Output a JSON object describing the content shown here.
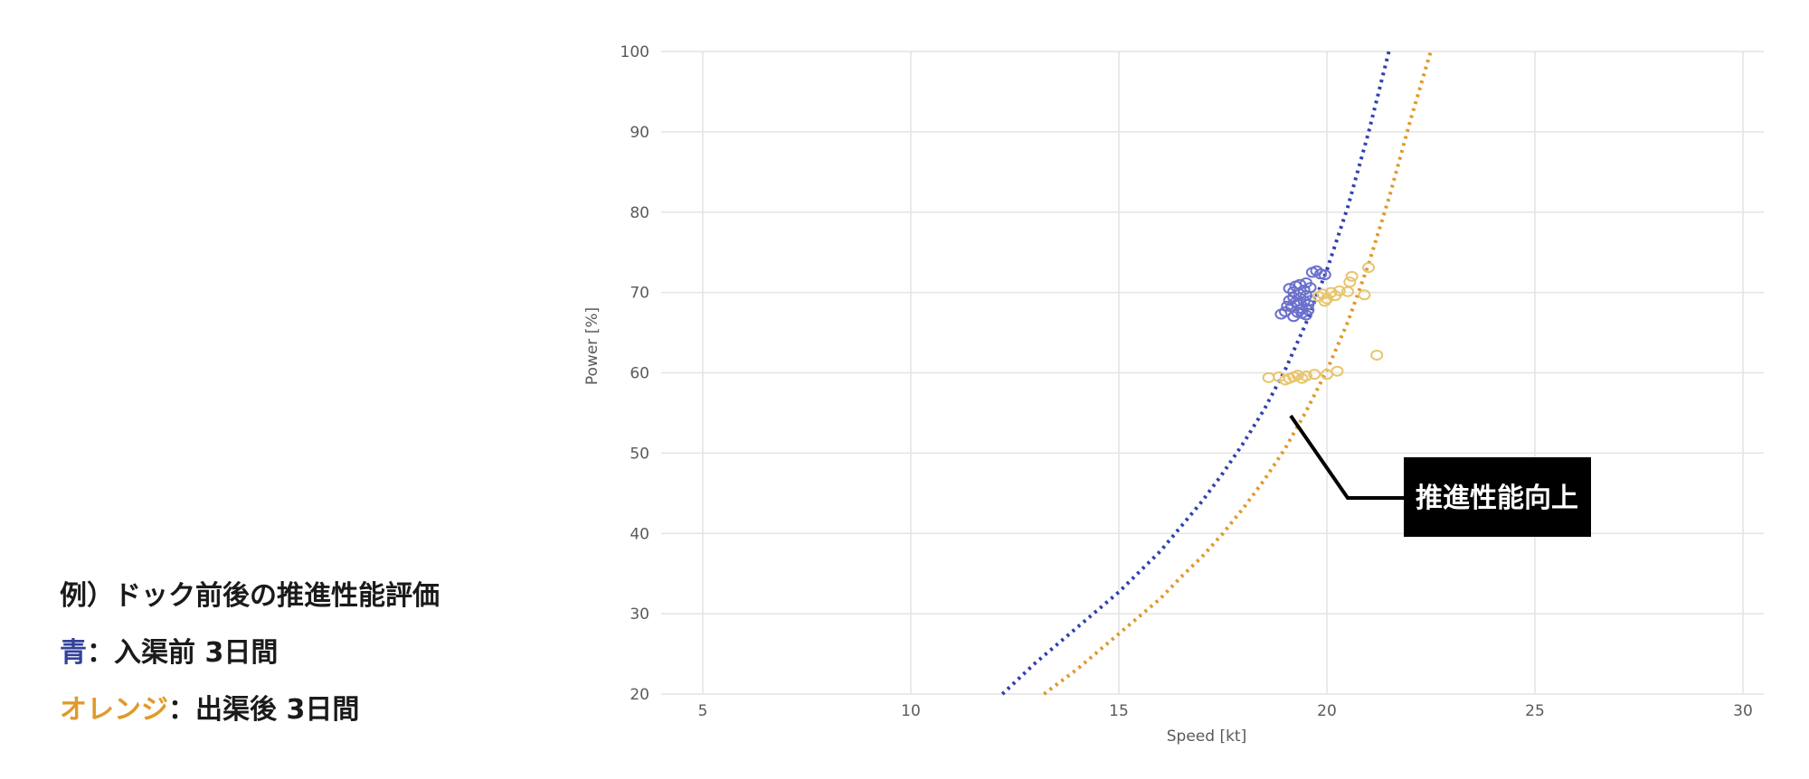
{
  "caption": {
    "line1": "例）ドック前後の推進性能評価",
    "line2_color_word": "青",
    "line2_rest": "：入渠前 3日間",
    "line3_color_word": "オレンジ",
    "line3_rest": "：出渠後 3日間",
    "blue_color": "#33419a",
    "orange_color": "#e09a2a"
  },
  "chart_data": {
    "type": "scatter",
    "xlabel": "Speed [kt]",
    "ylabel": "Power [%]",
    "xlim": [
      4,
      30.5
    ],
    "ylim": [
      20,
      100
    ],
    "x_ticks": [
      5,
      10,
      15,
      20,
      25,
      30
    ],
    "y_ticks": [
      20,
      30,
      40,
      50,
      60,
      70,
      80,
      90,
      100
    ],
    "grid": true,
    "series": [
      {
        "name": "",
        "kind": "scatter",
        "color": "#6b70cc",
        "points": [
          [
            18.9,
            67.3
          ],
          [
            19.0,
            67.6
          ],
          [
            19.05,
            68.3
          ],
          [
            19.1,
            69.0
          ],
          [
            19.15,
            68.2
          ],
          [
            19.2,
            69.4
          ],
          [
            19.2,
            70.1
          ],
          [
            19.25,
            70.8
          ],
          [
            19.3,
            67.5
          ],
          [
            19.3,
            68.6
          ],
          [
            19.35,
            71.0
          ],
          [
            19.4,
            67.4
          ],
          [
            19.4,
            68.0
          ],
          [
            19.45,
            68.9
          ],
          [
            19.45,
            70.3
          ],
          [
            19.5,
            69.6
          ],
          [
            19.5,
            71.2
          ],
          [
            19.55,
            67.8
          ],
          [
            19.55,
            68.5
          ],
          [
            19.6,
            69.0
          ],
          [
            19.6,
            70.6
          ],
          [
            19.65,
            72.5
          ],
          [
            19.75,
            72.7
          ],
          [
            19.85,
            72.3
          ],
          [
            19.95,
            72.2
          ],
          [
            19.2,
            67.0
          ],
          [
            19.35,
            69.8
          ],
          [
            19.1,
            70.5
          ],
          [
            19.5,
            67.2
          ],
          [
            19.25,
            68.8
          ]
        ]
      },
      {
        "name": "",
        "kind": "scatter",
        "color": "#e8c56e",
        "points": [
          [
            18.6,
            59.4
          ],
          [
            18.85,
            59.5
          ],
          [
            19.0,
            59.1
          ],
          [
            19.1,
            59.3
          ],
          [
            19.2,
            59.5
          ],
          [
            19.3,
            59.7
          ],
          [
            19.4,
            59.3
          ],
          [
            19.5,
            59.6
          ],
          [
            19.7,
            59.8
          ],
          [
            20.0,
            59.8
          ],
          [
            20.25,
            60.2
          ],
          [
            19.8,
            69.5
          ],
          [
            19.9,
            69.8
          ],
          [
            20.0,
            69.2
          ],
          [
            20.1,
            70.0
          ],
          [
            20.2,
            69.6
          ],
          [
            20.3,
            70.2
          ],
          [
            20.5,
            70.1
          ],
          [
            20.55,
            71.3
          ],
          [
            20.6,
            72.0
          ],
          [
            20.9,
            69.7
          ],
          [
            21.0,
            73.1
          ],
          [
            21.2,
            62.2
          ],
          [
            19.95,
            68.9
          ]
        ]
      },
      {
        "name": "",
        "kind": "line",
        "style": "dotted",
        "color": "#3040b0",
        "x": [
          12.2,
          13.0,
          14.0,
          15.0,
          16.0,
          16.5,
          17.0,
          17.5,
          18.0,
          18.5,
          19.0,
          19.5,
          20.0,
          20.5,
          21.0,
          21.5
        ],
        "y": [
          20.0,
          23.9,
          28.3,
          32.7,
          37.8,
          40.9,
          44.0,
          47.5,
          51.3,
          55.5,
          60.4,
          66.2,
          72.8,
          80.6,
          89.9,
          100.2
        ]
      },
      {
        "name": "",
        "kind": "line",
        "style": "dotted",
        "color": "#e09a2a",
        "x": [
          13.2,
          14.0,
          15.0,
          16.0,
          16.5,
          17.0,
          17.5,
          18.0,
          18.5,
          19.0,
          19.5,
          20.0,
          20.5,
          21.0,
          21.5,
          22.0,
          22.5
        ],
        "y": [
          20.0,
          23.1,
          27.5,
          31.9,
          34.6,
          37.1,
          40.0,
          43.2,
          46.7,
          50.6,
          55.2,
          60.3,
          66.3,
          73.5,
          81.9,
          91.3,
          100.1
        ]
      }
    ],
    "annotations": [
      {
        "text": "推進性能向上",
        "pointer_to": [
          19.2,
          54.0
        ]
      }
    ]
  }
}
